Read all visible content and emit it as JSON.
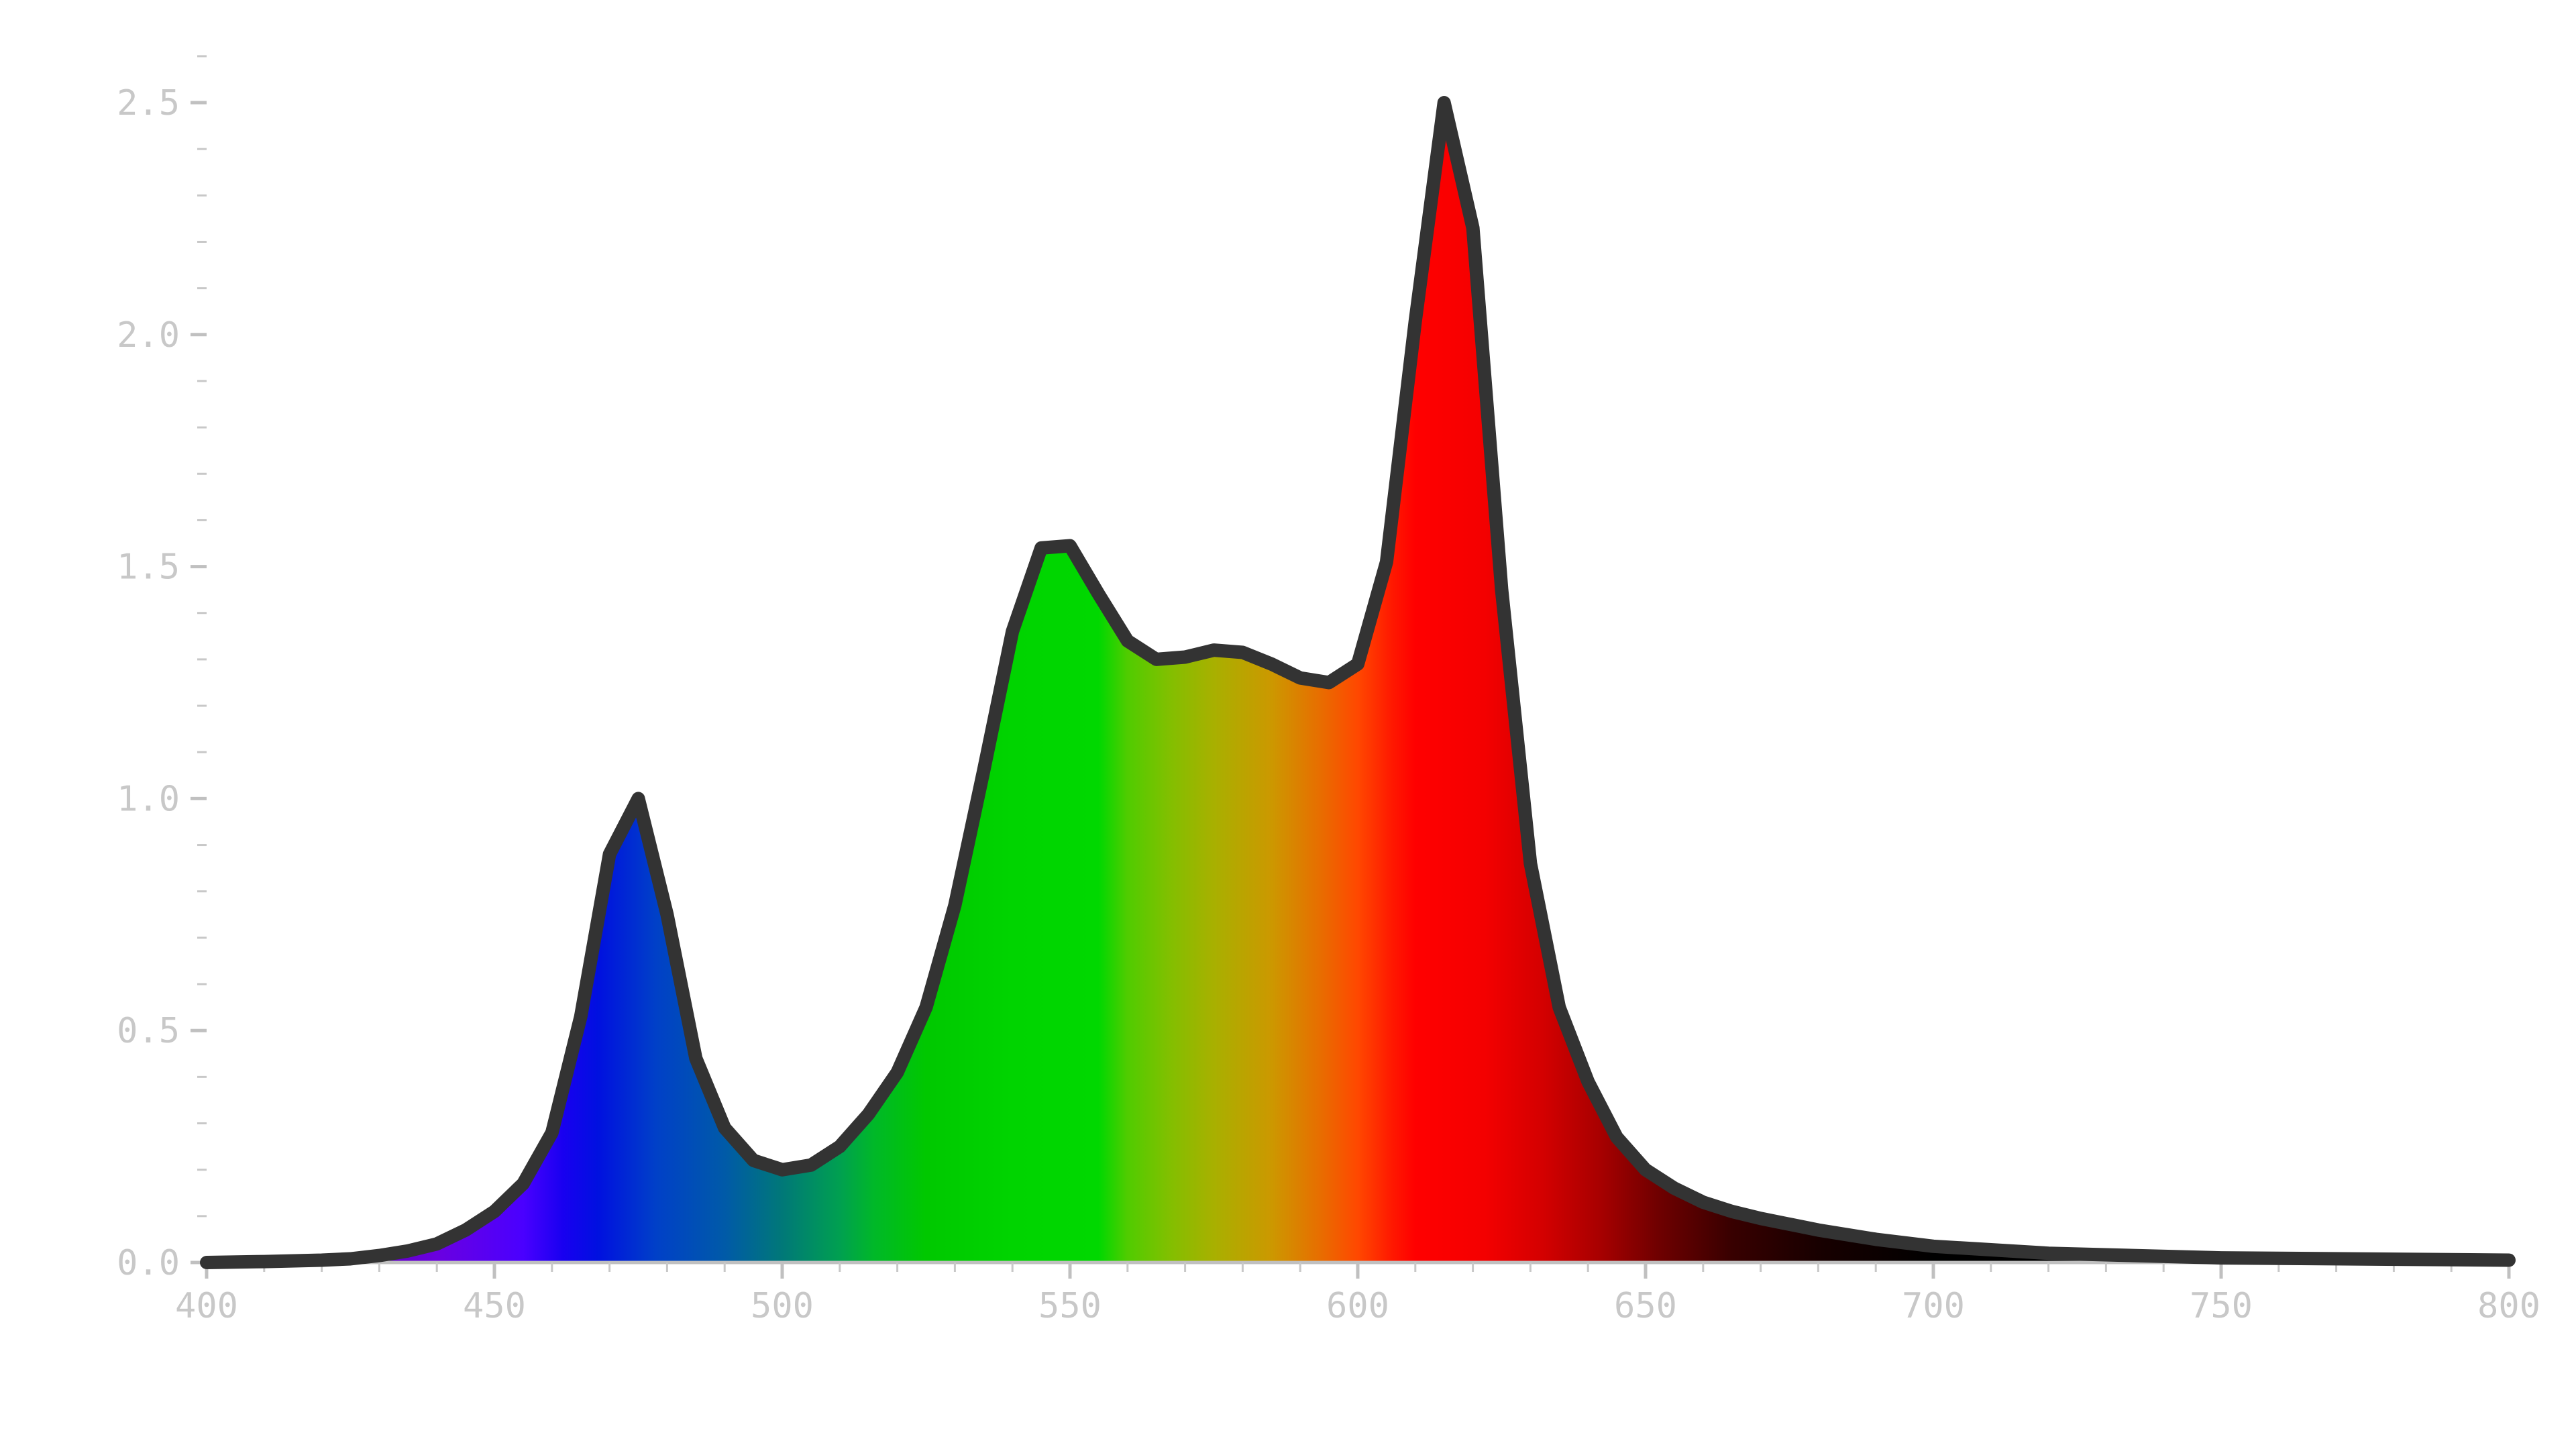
{
  "chart_data": {
    "type": "area",
    "title": "",
    "xlabel": "",
    "ylabel": "",
    "xlim": [
      400,
      800
    ],
    "ylim": [
      0,
      2.62
    ],
    "x_ticks": [
      400,
      450,
      500,
      550,
      600,
      650,
      700,
      750,
      800
    ],
    "x_tick_labels": [
      "400",
      "450",
      "500",
      "550",
      "600",
      "650",
      "700",
      "750",
      "800"
    ],
    "y_ticks": [
      0,
      0.5,
      1.0,
      1.5,
      2.0,
      2.5
    ],
    "y_tick_labels": [
      "0.0",
      "0.5",
      "1.0",
      "1.5",
      "2.0",
      "2.5"
    ],
    "grid": false,
    "legend": "none",
    "outline_color": "#333333",
    "fill": "visible-spectrum color gradient",
    "x": [
      400,
      410,
      420,
      425,
      430,
      435,
      440,
      445,
      450,
      455,
      460,
      465,
      470,
      475,
      480,
      485,
      490,
      495,
      500,
      505,
      510,
      515,
      520,
      525,
      530,
      535,
      540,
      545,
      550,
      555,
      560,
      565,
      570,
      575,
      580,
      585,
      590,
      595,
      600,
      605,
      610,
      615,
      620,
      625,
      630,
      635,
      640,
      645,
      650,
      655,
      660,
      665,
      670,
      680,
      690,
      700,
      720,
      750,
      800
    ],
    "y": [
      0.0,
      0.002,
      0.005,
      0.008,
      0.015,
      0.025,
      0.04,
      0.07,
      0.11,
      0.17,
      0.28,
      0.53,
      0.88,
      1.0,
      0.75,
      0.44,
      0.29,
      0.22,
      0.2,
      0.21,
      0.25,
      0.32,
      0.41,
      0.55,
      0.77,
      1.06,
      1.36,
      1.54,
      1.545,
      1.44,
      1.34,
      1.3,
      1.305,
      1.32,
      1.315,
      1.29,
      1.26,
      1.25,
      1.29,
      1.51,
      2.03,
      2.5,
      2.23,
      1.45,
      0.86,
      0.55,
      0.39,
      0.27,
      0.2,
      0.16,
      0.13,
      0.11,
      0.095,
      0.07,
      0.05,
      0.035,
      0.02,
      0.01,
      0.005
    ]
  }
}
